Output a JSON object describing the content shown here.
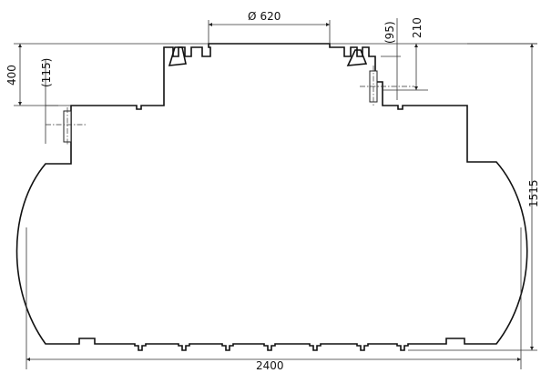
{
  "dimensions": {
    "manhole_diameter": "620",
    "diameter_symbol": "Ø",
    "top_offset": "210",
    "right_fitting_drop": "(95)",
    "top_height": "400",
    "left_fitting_drop": "(115)",
    "total_height": "1515",
    "total_length": "2400"
  }
}
